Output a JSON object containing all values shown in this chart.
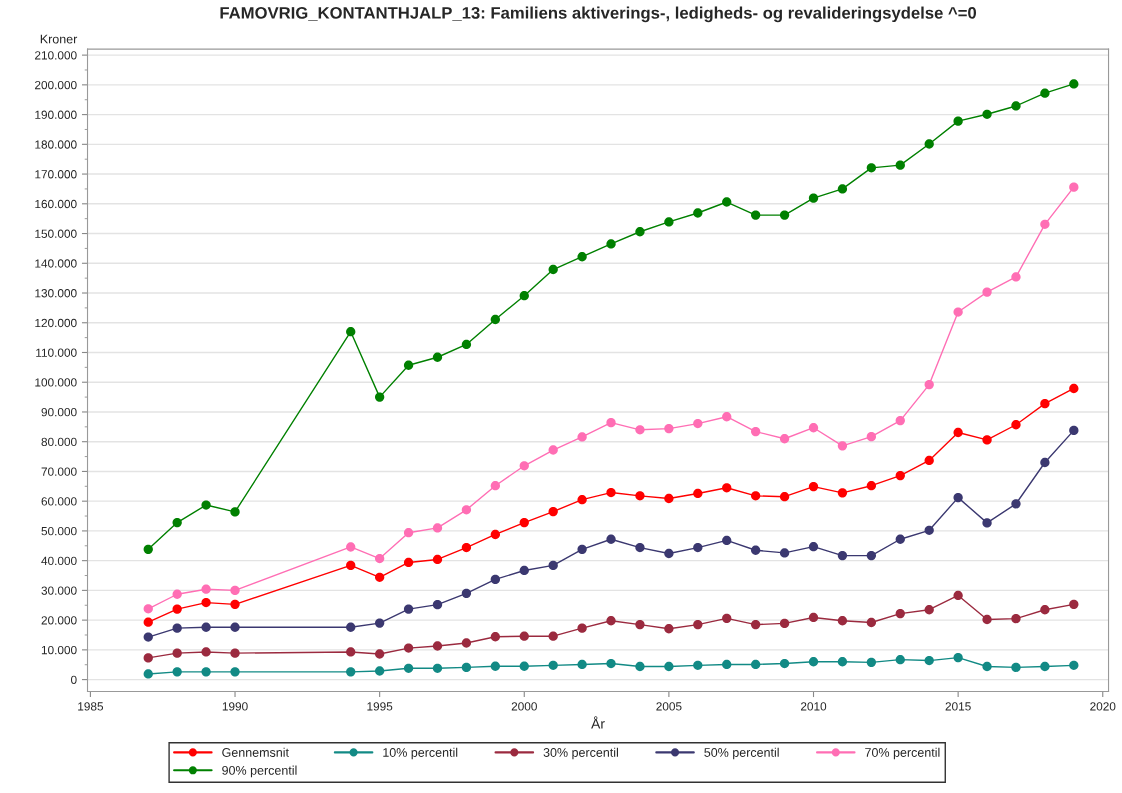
{
  "chart_data": {
    "type": "line",
    "title": "FAMOVRIG_KONTANTHJALP_13: Familiens aktiverings-, ledigheds- og revalideringsydelse ^=0",
    "xlabel": "År",
    "ylabel": "Kroner",
    "x": [
      1987,
      1988,
      1989,
      1990,
      1994,
      1995,
      1996,
      1997,
      1998,
      1999,
      2000,
      2001,
      2002,
      2003,
      2004,
      2005,
      2006,
      2007,
      2008,
      2009,
      2010,
      2011,
      2012,
      2013,
      2014,
      2015,
      2016,
      2017,
      2018,
      2019
    ],
    "series": [
      {
        "name": "Gennemsnit",
        "color": "#ff0000",
        "values": [
          19300,
          23700,
          25900,
          25300,
          38400,
          34400,
          39400,
          40400,
          44400,
          48800,
          52800,
          56500,
          60500,
          62900,
          61800,
          60900,
          62600,
          64500,
          61800,
          61500,
          64900,
          62800,
          65200,
          68600,
          73700,
          83100,
          80600,
          85700,
          92800,
          97900
        ]
      },
      {
        "name": "10% percentil",
        "color": "#128a85",
        "values": [
          1900,
          2600,
          2600,
          2600,
          2600,
          2900,
          3800,
          3800,
          4100,
          4500,
          4500,
          4800,
          5100,
          5400,
          4400,
          4400,
          4800,
          5100,
          5100,
          5400,
          6000,
          6000,
          5800,
          6700,
          6400,
          7400,
          4400,
          4100,
          4400,
          4800
        ]
      },
      {
        "name": "30% percentil",
        "color": "#9b2a3f",
        "values": [
          7300,
          8900,
          9300,
          8900,
          9300,
          8600,
          10600,
          11300,
          12300,
          14400,
          14600,
          14600,
          17300,
          19800,
          18500,
          17100,
          18500,
          20600,
          18500,
          18900,
          20900,
          19800,
          19200,
          22200,
          23500,
          28300,
          20200,
          20500,
          23500,
          25300
        ]
      },
      {
        "name": "50% percentil",
        "color": "#3b3870",
        "values": [
          14300,
          17300,
          17600,
          17600,
          17600,
          19000,
          23700,
          25200,
          29000,
          33700,
          36700,
          38400,
          43800,
          47200,
          44400,
          42400,
          44400,
          46800,
          43500,
          42600,
          44700,
          41700,
          41700,
          47200,
          50200,
          61200,
          52700,
          59100,
          73000,
          83800
        ]
      },
      {
        "name": "70% percentil",
        "color": "#ff6eb4",
        "values": [
          23800,
          28700,
          30400,
          30000,
          44600,
          40700,
          49400,
          51000,
          57100,
          65200,
          71900,
          77200,
          81600,
          86400,
          84000,
          84400,
          86100,
          88400,
          83400,
          81000,
          84700,
          78600,
          81700,
          87100,
          99200,
          123600,
          130300,
          135400,
          153100,
          165600
        ]
      },
      {
        "name": "90% percentil",
        "color": "#008000",
        "values": [
          43800,
          52800,
          58700,
          56400,
          117000,
          95000,
          105700,
          108400,
          112700,
          121100,
          129100,
          137900,
          142200,
          146500,
          150600,
          153900,
          156900,
          160600,
          156200,
          156200,
          161900,
          165000,
          172100,
          173000,
          180100,
          187800,
          190100,
          192900,
          197200,
          200300
        ]
      }
    ],
    "xlim": [
      1984.9,
      2020.2
    ],
    "xticks": [
      1985,
      1990,
      1995,
      2000,
      2005,
      2010,
      2015,
      2020
    ],
    "ylim": [
      -4000,
      212000
    ],
    "yticks": [
      {
        "value": 0,
        "label": "0"
      },
      {
        "value": 10000,
        "label": "10.000"
      },
      {
        "value": 20000,
        "label": "20.000"
      },
      {
        "value": 30000,
        "label": "30.000"
      },
      {
        "value": 40000,
        "label": "40.000"
      },
      {
        "value": 50000,
        "label": "50.000"
      },
      {
        "value": 60000,
        "label": "60.000"
      },
      {
        "value": 70000,
        "label": "70.000"
      },
      {
        "value": 80000,
        "label": "80.000"
      },
      {
        "value": 90000,
        "label": "90.000"
      },
      {
        "value": 100000,
        "label": "100.000"
      },
      {
        "value": 110000,
        "label": "110.000"
      },
      {
        "value": 120000,
        "label": "120.000"
      },
      {
        "value": 130000,
        "label": "130.000"
      },
      {
        "value": 140000,
        "label": "140.000"
      },
      {
        "value": 150000,
        "label": "150.000"
      },
      {
        "value": 160000,
        "label": "160.000"
      },
      {
        "value": 170000,
        "label": "170.000"
      },
      {
        "value": 180000,
        "label": "180.000"
      },
      {
        "value": 190000,
        "label": "190.000"
      },
      {
        "value": 200000,
        "label": "200.000"
      },
      {
        "value": 210000,
        "label": "210.000"
      }
    ],
    "grid": "y",
    "legend": "bottom",
    "marker": "circle",
    "line_style": "solid"
  }
}
